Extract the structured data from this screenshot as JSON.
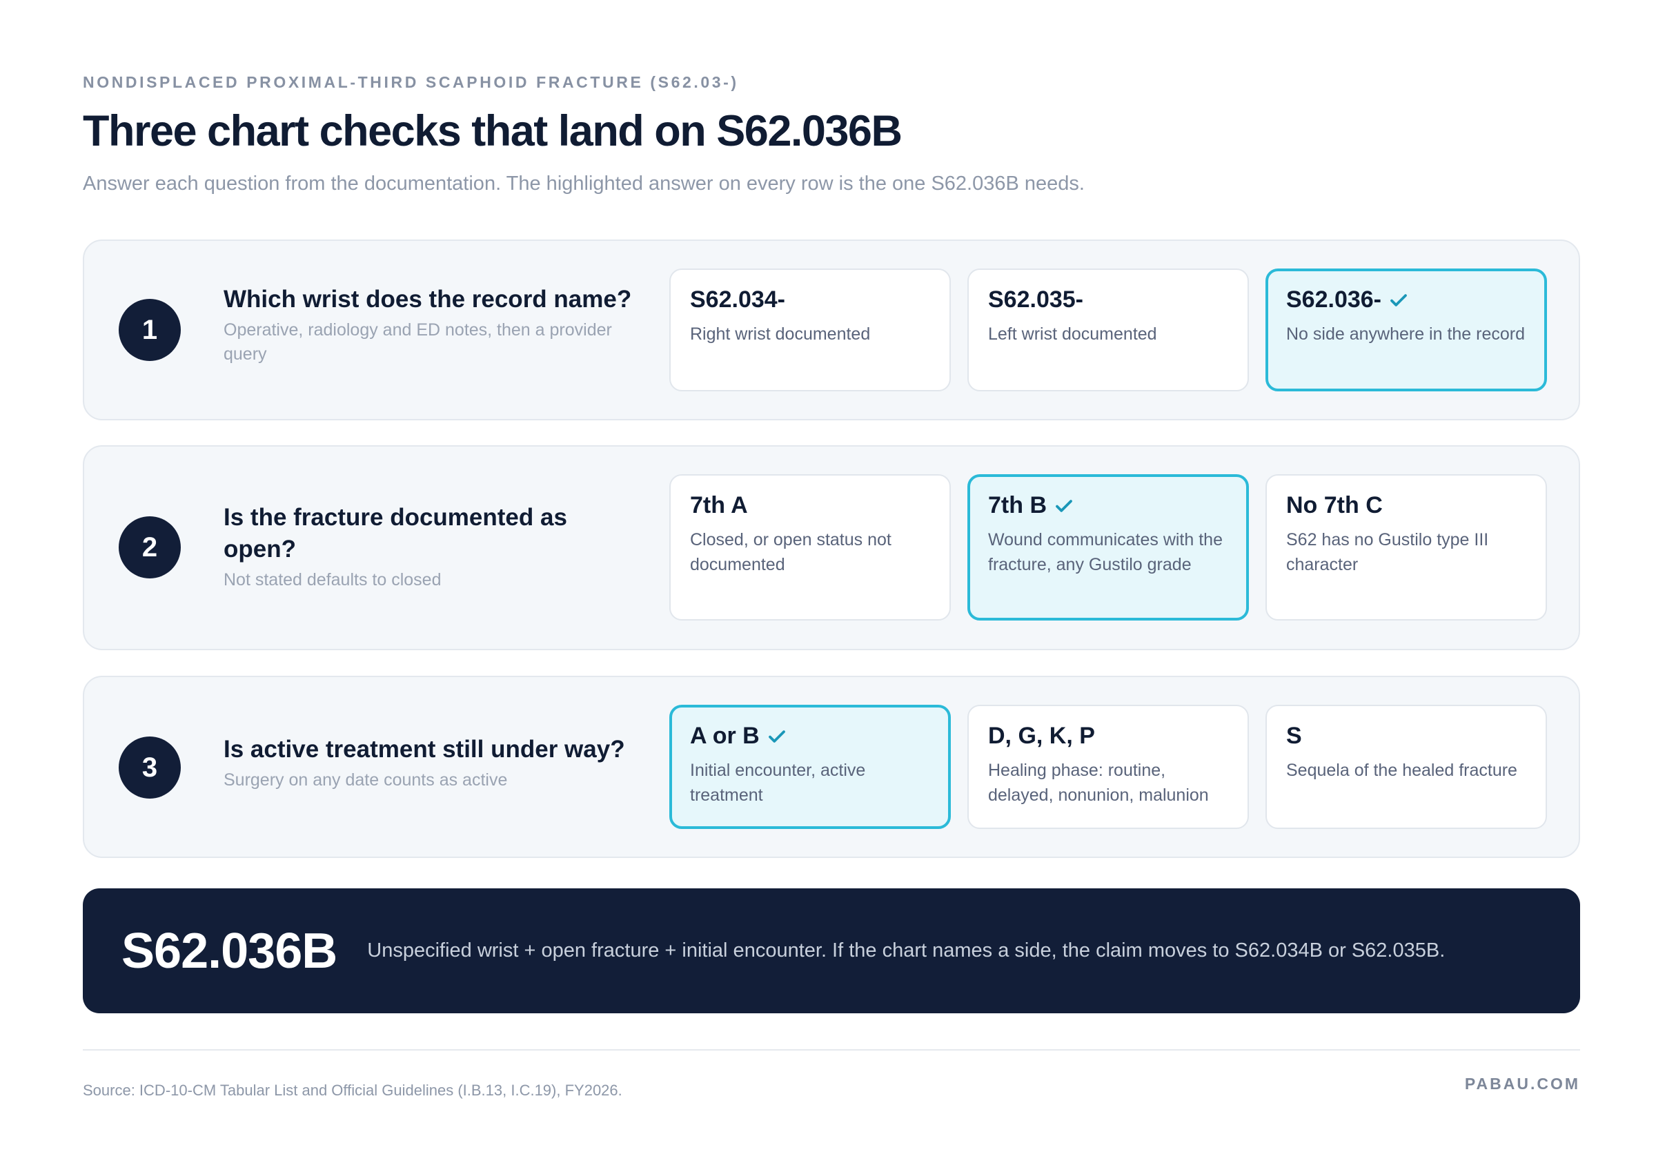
{
  "header": {
    "eyebrow": "NONDISPLACED PROXIMAL-THIRD SCAPHOID FRACTURE (S62.03-)",
    "title": "Three chart checks that land on S62.036B",
    "subtitle": "Answer each question from the documentation. The highlighted answer on every row is the one S62.036B needs."
  },
  "rows": [
    {
      "number": "1",
      "question": "Which wrist does the record name?",
      "hint": "Operative, radiology and ED notes, then a provider query",
      "options": [
        {
          "code": "S62.034-",
          "desc": "Right wrist documented",
          "selected": false
        },
        {
          "code": "S62.035-",
          "desc": "Left wrist documented",
          "selected": false
        },
        {
          "code": "S62.036-",
          "desc": "No side anywhere in the record",
          "selected": true
        }
      ]
    },
    {
      "number": "2",
      "question": "Is the fracture documented as open?",
      "hint": "Not stated defaults to closed",
      "options": [
        {
          "code": "7th A",
          "desc": "Closed, or open status not documented",
          "selected": false
        },
        {
          "code": "7th B",
          "desc": "Wound communicates with the fracture, any Gustilo grade",
          "selected": true
        },
        {
          "code": "No 7th C",
          "desc": "S62 has no Gustilo type III character",
          "selected": false
        }
      ]
    },
    {
      "number": "3",
      "question": "Is active treatment still under way?",
      "hint": "Surgery on any date counts as active",
      "options": [
        {
          "code": "A or B",
          "desc": "Initial encounter, active treatment",
          "selected": true
        },
        {
          "code": "D, G, K, P",
          "desc": "Healing phase: routine, delayed, nonunion, malunion",
          "selected": false
        },
        {
          "code": "S",
          "desc": "Sequela of the healed fracture",
          "selected": false
        }
      ]
    }
  ],
  "result": {
    "code": "S62.036B",
    "explanation": "Unspecified wrist + open fracture + initial encounter. If the chart names a side, the claim moves to S62.034B or S62.035B."
  },
  "footer": {
    "source": "Source: ICD-10-CM Tabular List and Official Guidelines (I.B.13, I.C.19), FY2026.",
    "brand": "PABAU.COM"
  },
  "colors": {
    "navy": "#121e38",
    "accent": "#2bbad8",
    "selected_bg": "#e6f7fb",
    "row_bg": "#f4f7fa"
  },
  "icons": {
    "selected_marker": "check-icon"
  }
}
